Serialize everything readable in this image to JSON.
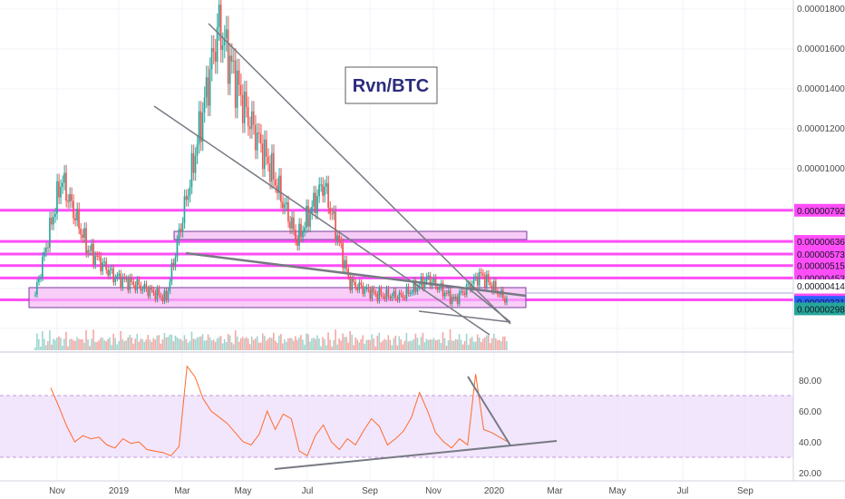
{
  "chart_data": [
    {
      "type": "candlestick",
      "title": "Rvn/BTC",
      "y_axis": {
        "ticks": [
          "0.00001800",
          "0.00001600",
          "0.00001400",
          "0.00001200",
          "0.00001000"
        ],
        "ylim": [
          2.7e-06,
          1.85e-05
        ]
      },
      "x_axis": {
        "ticks": [
          "Nov",
          "2019",
          "Mar",
          "May",
          "Jul",
          "Sep",
          "Nov",
          "2020",
          "Mar",
          "May",
          "Jul",
          "Sep"
        ]
      },
      "price_levels": [
        {
          "label": "0.00000792",
          "value": 7.92e-06,
          "color": "#ff4df8"
        },
        {
          "label": "0.00000636",
          "value": 6.36e-06,
          "color": "#ff4df8"
        },
        {
          "label": "0.00000573",
          "value": 5.73e-06,
          "color": "#ff4df8"
        },
        {
          "label": "0.00000515",
          "value": 5.15e-06,
          "color": "#ff4df8"
        },
        {
          "label": "0.00000453",
          "value": 4.53e-06,
          "color": "#ff4df8"
        },
        {
          "label": "0.00000414",
          "value": 4.14e-06,
          "color": "#ffffff"
        },
        {
          "label": "0.00000343",
          "value": 3.43e-06,
          "color": "#ff4df8"
        },
        {
          "label": "0.00000331",
          "value": 3.31e-06,
          "color": "#2962ff"
        },
        {
          "label": "0.00000298",
          "value": 2.98e-06,
          "color": "#26a69a"
        }
      ],
      "key_closes": [
        {
          "time": "Oct 2018",
          "value": 3.7e-06
        },
        {
          "time": "Oct 2018",
          "value": 9.5e-06
        },
        {
          "time": "Nov 2018",
          "value": 6e-06
        },
        {
          "time": "Dec 2018",
          "value": 4.6e-06
        },
        {
          "time": "Jan 2019",
          "value": 4.1e-06
        },
        {
          "time": "Feb 2019",
          "value": 3.5e-06
        },
        {
          "time": "Mar 2019",
          "value": 1e-05
        },
        {
          "time": "Apr 2019",
          "value": 1.72e-05
        },
        {
          "time": "Apr 2019",
          "value": 1.3e-05
        },
        {
          "time": "May 2019",
          "value": 1e-05
        },
        {
          "time": "Jun 2019",
          "value": 6.4e-06
        },
        {
          "time": "Jun 2019",
          "value": 9.3e-06
        },
        {
          "time": "Jul 2019",
          "value": 4.3e-06
        },
        {
          "time": "Aug 2019",
          "value": 3.7e-06
        },
        {
          "time": "Sep 2019",
          "value": 3.6e-06
        },
        {
          "time": "Oct 2019",
          "value": 4.5e-06
        },
        {
          "time": "Nov 2019",
          "value": 3.4e-06
        },
        {
          "time": "Dec 2019",
          "value": 4.7e-06
        },
        {
          "time": "Jan 2020",
          "value": 3.4e-06
        }
      ],
      "colors": {
        "up": "#26a69a",
        "down": "#ef5350"
      }
    },
    {
      "type": "line",
      "series": [
        {
          "values": [
            75,
            63,
            50,
            40,
            44,
            42,
            43,
            38,
            36,
            42,
            39,
            40,
            35,
            34,
            33,
            31,
            37,
            89,
            82,
            68,
            60,
            56,
            52,
            46,
            40,
            38,
            45,
            60,
            48,
            58,
            55,
            34,
            31,
            44,
            51,
            40,
            35,
            42,
            38,
            47,
            55,
            50,
            38,
            42,
            47,
            56,
            72,
            60,
            46,
            40,
            36,
            42,
            38,
            84,
            48,
            46,
            43,
            40
          ]
        }
      ],
      "ylim": [
        20,
        93
      ],
      "y_ticks": [
        "80.00",
        "60.00",
        "40.00",
        "20.00"
      ],
      "band": [
        30,
        70
      ],
      "color": "#ff6a2a"
    }
  ]
}
